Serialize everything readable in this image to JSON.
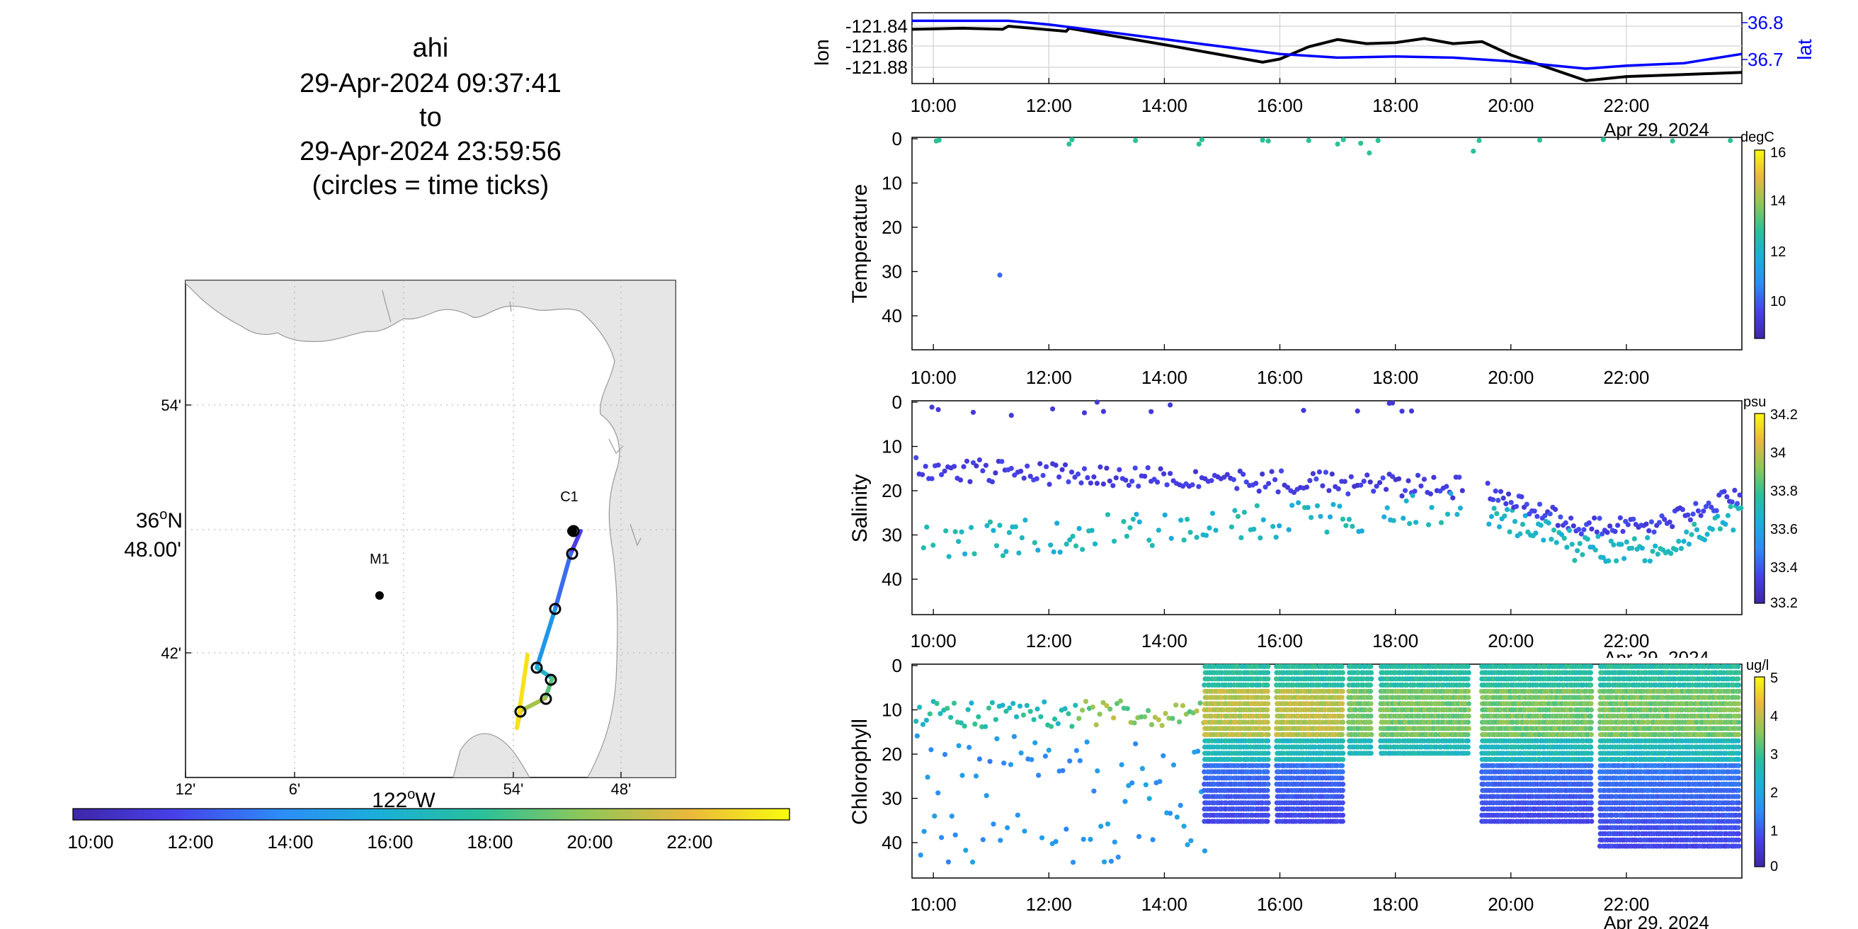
{
  "title": {
    "lines": [
      "ahi",
      "29-Apr-2024 09:37:41",
      "to",
      "29-Apr-2024 23:59:56",
      "(circles = time ticks)"
    ]
  },
  "colors": {
    "land": "#e6e6e6",
    "track_lon": "#000000",
    "track_lat": "#0000ff",
    "grid": "#c8c8c8"
  },
  "map": {
    "x_ticks": [
      "12'",
      "6'",
      "54'",
      "48'"
    ],
    "x_label": "122",
    "x_label_unit": "o",
    "x_label_suffix": "W",
    "y_ticks": [
      "54'",
      "42'"
    ],
    "y_label_line1": "36",
    "y_label_unit": "o",
    "y_label_suffix": "N",
    "y_label_line2": "48.00'",
    "stations": [
      {
        "label": "M1",
        "lon": -122.03,
        "lat": 36.747
      },
      {
        "label": "C1",
        "lon": -121.847,
        "lat": 36.797
      }
    ],
    "time_colorbar_ticks": [
      "10:00",
      "12:00",
      "14:00",
      "16:00",
      "18:00",
      "20:00",
      "22:00"
    ]
  },
  "chart_data": [
    {
      "type": "line",
      "title": "",
      "x_ticks": [
        "10:00",
        "12:00",
        "14:00",
        "16:00",
        "18:00",
        "20:00",
        "22:00"
      ],
      "date_label": "Apr 29, 2024",
      "ylabel_left": "lon",
      "ylabel_right": "lat",
      "left_ticks": [
        "-121.84",
        "-121.86",
        "-121.88"
      ],
      "right_ticks": [
        "36.8",
        "36.7"
      ],
      "series": [
        {
          "name": "lon",
          "axis": "left",
          "x": [
            9.63,
            10.5,
            11.2,
            11.3,
            12.3,
            12.35,
            14.0,
            15.7,
            16.0,
            16.5,
            17.0,
            17.5,
            18.0,
            18.5,
            19.0,
            19.5,
            20.0,
            21.3,
            22.0,
            23.0,
            24.0
          ],
          "y": [
            -121.843,
            -121.842,
            -121.843,
            -121.84,
            -121.845,
            -121.842,
            -121.858,
            -121.875,
            -121.872,
            -121.86,
            -121.853,
            -121.857,
            -121.856,
            -121.852,
            -121.857,
            -121.855,
            -121.868,
            -121.893,
            -121.889,
            -121.887,
            -121.885
          ]
        },
        {
          "name": "lat",
          "axis": "right",
          "x": [
            9.63,
            10.5,
            11.3,
            12.0,
            14.0,
            16.0,
            17.0,
            18.0,
            19.0,
            20.0,
            21.3,
            22.0,
            23.0,
            24.0
          ],
          "y": [
            36.805,
            36.805,
            36.805,
            36.795,
            36.755,
            36.715,
            36.705,
            36.708,
            36.705,
            36.695,
            36.675,
            36.683,
            36.69,
            36.715
          ]
        }
      ]
    },
    {
      "type": "scatter",
      "title": "",
      "ylabel": "Temperature",
      "x_ticks": [
        "10:00",
        "12:00",
        "14:00",
        "16:00",
        "18:00",
        "20:00",
        "22:00"
      ],
      "date_label": "Apr 29, 2024",
      "y_ticks": [
        "0",
        "10",
        "20",
        "30",
        "40"
      ],
      "ylim": [
        0,
        48
      ],
      "colorbar": {
        "unit": "degC",
        "min": 8,
        "max": 16,
        "ticks": [
          "16",
          "14",
          "12",
          "10"
        ]
      },
      "points": [
        {
          "x": 10.05,
          "y": 0.5,
          "v": 12.6
        },
        {
          "x": 10.1,
          "y": 0.3,
          "v": 12.6
        },
        {
          "x": 11.15,
          "y": 30.8,
          "v": 9.8
        },
        {
          "x": 12.35,
          "y": 1.2,
          "v": 12.6
        },
        {
          "x": 12.4,
          "y": 0.2,
          "v": 12.6
        },
        {
          "x": 13.5,
          "y": 0.4,
          "v": 12.6
        },
        {
          "x": 14.6,
          "y": 1.2,
          "v": 12.6
        },
        {
          "x": 14.65,
          "y": 0.2,
          "v": 12.6
        },
        {
          "x": 15.7,
          "y": 0.3,
          "v": 12.6
        },
        {
          "x": 15.8,
          "y": 0.5,
          "v": 12.6
        },
        {
          "x": 16.5,
          "y": 0.4,
          "v": 12.6
        },
        {
          "x": 17.0,
          "y": 1.2,
          "v": 12.6
        },
        {
          "x": 17.1,
          "y": 0.2,
          "v": 12.6
        },
        {
          "x": 17.4,
          "y": 1.0,
          "v": 12.6
        },
        {
          "x": 17.55,
          "y": 3.2,
          "v": 12.6
        },
        {
          "x": 17.7,
          "y": 0.4,
          "v": 12.6
        },
        {
          "x": 19.35,
          "y": 2.8,
          "v": 12.6
        },
        {
          "x": 19.45,
          "y": 0.4,
          "v": 12.6
        },
        {
          "x": 20.5,
          "y": 0.3,
          "v": 12.6
        },
        {
          "x": 21.6,
          "y": 0.2,
          "v": 12.6
        },
        {
          "x": 22.8,
          "y": 0.5,
          "v": 12.6
        },
        {
          "x": 23.8,
          "y": 0.4,
          "v": 12.6
        }
      ]
    },
    {
      "type": "scatter",
      "title": "",
      "ylabel": "Salinity",
      "x_ticks": [
        "10:00",
        "12:00",
        "14:00",
        "16:00",
        "18:00",
        "20:00",
        "22:00"
      ],
      "date_label": "Apr 29, 2024",
      "y_ticks": [
        "0",
        "10",
        "20",
        "30",
        "40"
      ],
      "ylim": [
        0,
        48
      ],
      "colorbar": {
        "unit": "psu",
        "min": 33.2,
        "max": 34.2,
        "ticks": [
          "34.2",
          "34",
          "33.8",
          "33.6",
          "33.4",
          "33.2"
        ]
      },
      "model": [
        {
          "t0": 9.63,
          "t1": 19.2,
          "y": "15 + 2*(t-9.6)/4",
          "v": 33.3
        },
        {
          "t0": 9.63,
          "t1": 19.2,
          "y": "30 - 5*(t-9.6)/6",
          "v": 33.5
        },
        {
          "t0": 19.6,
          "t1": 24.0,
          "y": "trough 28",
          "v": 33.3
        },
        {
          "t0": 19.6,
          "t1": 24.0,
          "y": "trough 33",
          "v": 33.5
        }
      ]
    },
    {
      "type": "scatter",
      "title": "",
      "ylabel": "Chlorophyll",
      "x_ticks": [
        "10:00",
        "12:00",
        "14:00",
        "16:00",
        "18:00",
        "20:00",
        "22:00"
      ],
      "date_label": "Apr 29, 2024",
      "y_ticks": [
        "0",
        "10",
        "20",
        "30",
        "40"
      ],
      "ylim": [
        0,
        48
      ],
      "colorbar": {
        "unit": "ug/l",
        "min": 0,
        "max": 5,
        "ticks": [
          "5",
          "4",
          "3",
          "2",
          "1",
          "0"
        ]
      },
      "profile_blocks": [
        {
          "t0": 14.7,
          "t1": 15.8,
          "max_depth": 36
        },
        {
          "t0": 15.95,
          "t1": 17.1,
          "max_depth": 36
        },
        {
          "t0": 17.2,
          "t1": 17.6,
          "max_depth": 21
        },
        {
          "t0": 17.75,
          "t1": 19.3,
          "max_depth": 21
        },
        {
          "t0": 19.5,
          "t1": 21.4,
          "max_depth": 36
        },
        {
          "t0": 21.55,
          "t1": 23.95,
          "max_depth": 41
        }
      ]
    }
  ]
}
